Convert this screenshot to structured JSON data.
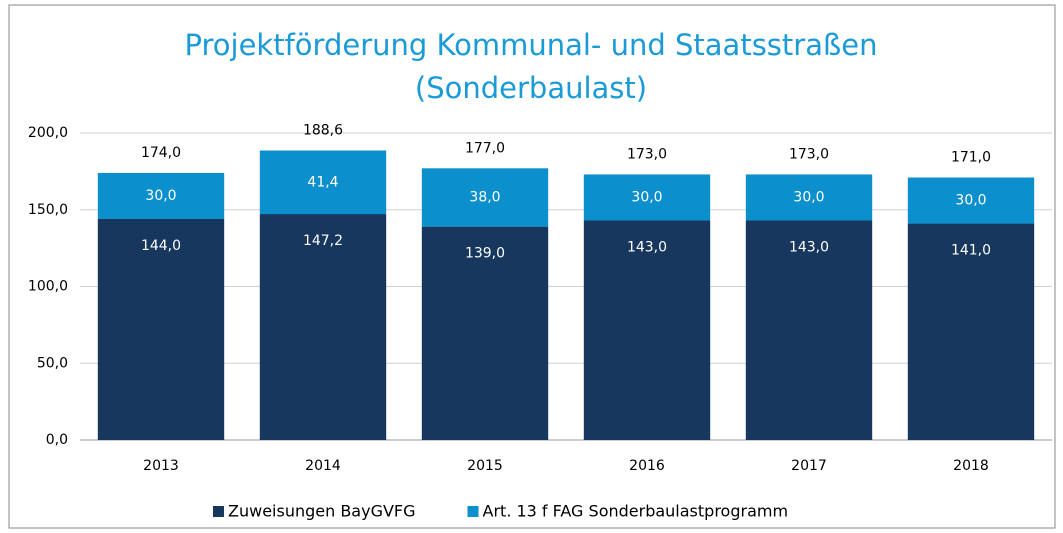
{
  "chart_data": {
    "type": "stacked_bar",
    "title": [
      "Projektförderung Kommunal- und Staatsstraßen",
      "(Sonderbaulast)"
    ],
    "categories": [
      "2013",
      "2014",
      "2015",
      "2016",
      "2017",
      "2018"
    ],
    "series": [
      {
        "name": "Zuweisungen BayGVFG",
        "color": "#17375e",
        "values": [
          144,
          147.2,
          139,
          143,
          143,
          141
        ],
        "value_labels": [
          "144,0",
          "147,2",
          "139,0",
          "143,0",
          "143,0",
          "141,0"
        ]
      },
      {
        "name": "Art. 13 f FAG Sonderbaulastprogramm",
        "color": "#0b8fcd",
        "values": [
          30,
          41.4,
          38,
          30,
          30,
          30
        ],
        "value_labels": [
          "30,0",
          "41,4",
          "38,0",
          "30,0",
          "30,0",
          "30,0"
        ]
      }
    ],
    "totals": [
      174,
      188.6,
      177,
      173,
      173,
      171
    ],
    "total_labels": [
      "174,0",
      "188,6",
      "177,0",
      "173,0",
      "173,0",
      "171,0"
    ],
    "ylim": [
      0,
      200
    ],
    "yticks": [
      {
        "value": 0,
        "label": "0,0"
      },
      {
        "value": 50,
        "label": "50,0"
      },
      {
        "value": 100,
        "label": "100,0"
      },
      {
        "value": 150,
        "label": "150,0"
      },
      {
        "value": 200,
        "label": "200,0"
      }
    ],
    "grid": true,
    "legend": "bottom"
  }
}
